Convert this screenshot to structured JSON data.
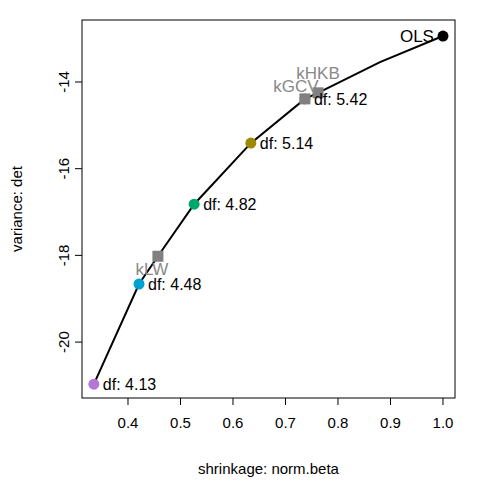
{
  "chart_data": {
    "type": "scatter",
    "x_label": "shrinkage: norm.beta",
    "y_label": "variance: det",
    "xlim": [
      0.3124,
      1.0229
    ],
    "ylim": [
      -21.29,
      -12.57
    ],
    "xticks": [
      0.4,
      0.5,
      0.6,
      0.7,
      0.8,
      0.9,
      {
        "value": 1,
        "label": "1.0"
      }
    ],
    "yticks": [
      -20,
      -18,
      -16,
      -14
    ],
    "series": [
      {
        "type": "line",
        "color": "#000000",
        "line_style": "solid",
        "x": [
          0.335,
          0.421,
          0.457,
          0.526,
          0.634,
          0.737,
          0.762,
          0.88,
          1.0
        ],
        "values": [
          -20.97,
          -18.66,
          -18.02,
          -16.82,
          -15.41,
          -14.39,
          -14.25,
          -13.54,
          -12.94
        ]
      },
      {
        "type": "scatter",
        "marker": "circle",
        "x": [
          0.737,
          0.634,
          0.526,
          0.421,
          0.335
        ],
        "values": [
          -14.39,
          -15.41,
          -16.82,
          -18.66,
          -20.97
        ],
        "colors": [
          "#E16A86",
          "#9E8A00",
          "#00A86B",
          "#00A2D3",
          "#B378D6"
        ],
        "labels": [
          "df: 5.42",
          "df: 5.14",
          "df: 4.82",
          "df: 4.48",
          "df: 4.13"
        ]
      },
      {
        "type": "scatter",
        "marker": "square",
        "color": "#808080",
        "x": [
          0.762,
          0.737,
          0.457
        ],
        "values": [
          -14.25,
          -14.39,
          -18.02
        ],
        "labels": [
          "kHKB",
          "kGCV",
          "kLW"
        ]
      },
      {
        "type": "scatter",
        "marker": "circle",
        "color": "#000000",
        "x": [
          1.0
        ],
        "values": [
          -12.94
        ],
        "labels": [
          "OLS"
        ]
      }
    ]
  }
}
